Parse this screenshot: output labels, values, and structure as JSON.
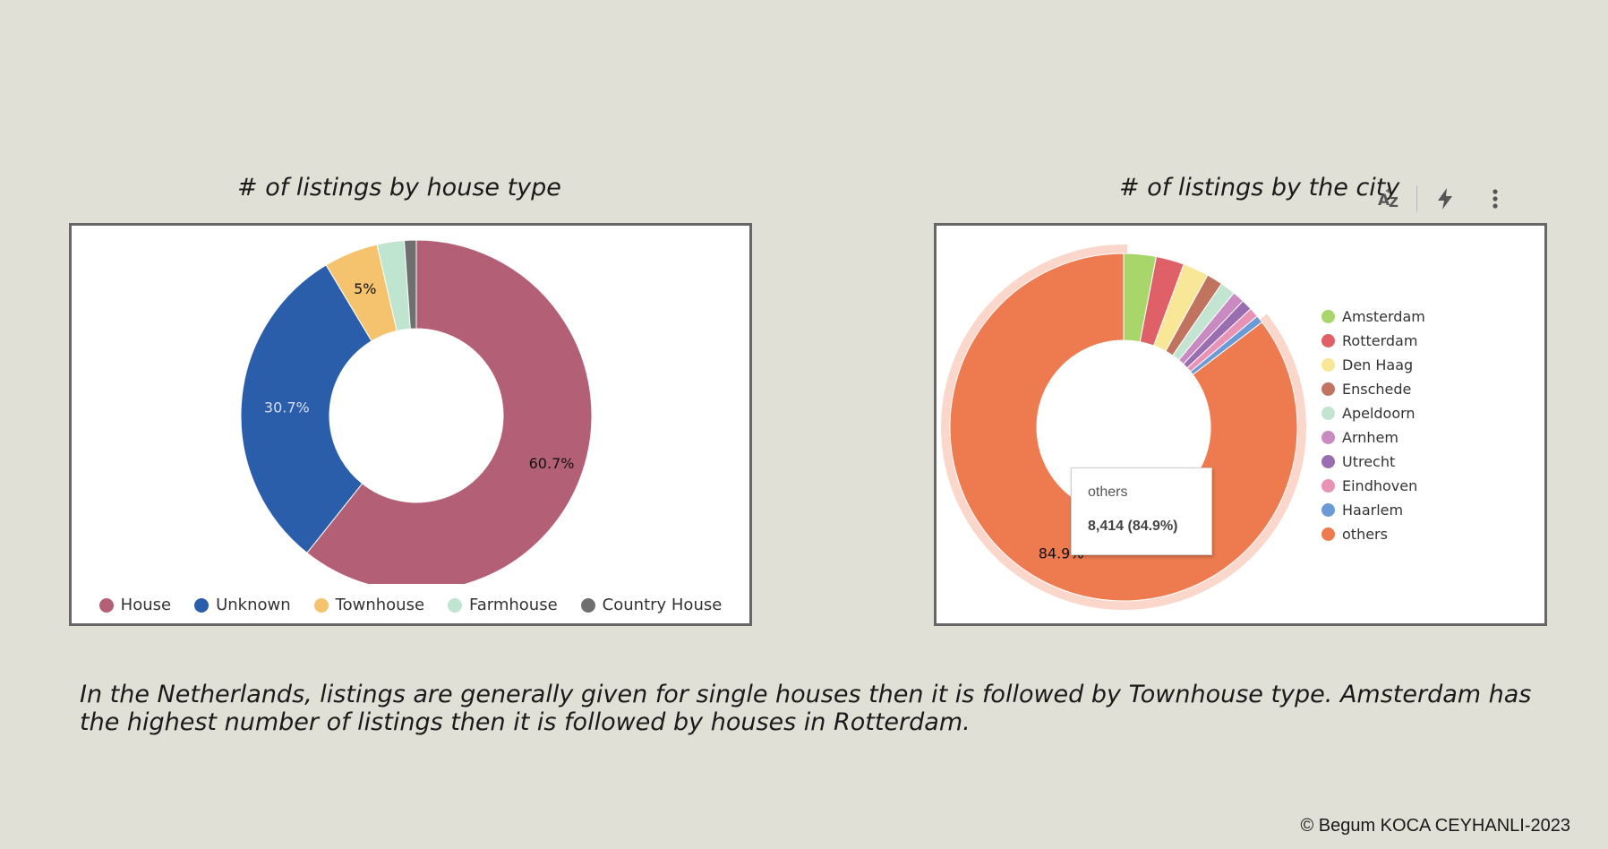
{
  "chart_data": [
    {
      "type": "pie",
      "title": "# of listings by  house type",
      "categories": [
        "House",
        "Unknown",
        "Townhouse",
        "Farmhouse",
        "Country House"
      ],
      "values": [
        60.7,
        30.7,
        5,
        2.5,
        1.1
      ],
      "value_unit": "%",
      "data_labels": [
        "60.7%",
        "30.7%",
        "5%",
        "",
        ""
      ],
      "colors": [
        "#b35f76",
        "#2a5eab",
        "#f5c36e",
        "#bfe4cf",
        "#6f6f6f"
      ],
      "legend_position": "bottom"
    },
    {
      "type": "pie",
      "title": "# of listings by the city",
      "categories": [
        "Amsterdam",
        "Rotterdam",
        "Den Haag",
        "Enschede",
        "Apeldoorn",
        "Arnhem",
        "Utrecht",
        "Eindhoven",
        "Haarlem",
        "others"
      ],
      "values": [
        3.0,
        2.6,
        2.4,
        1.5,
        1.4,
        1.1,
        1.0,
        0.9,
        0.7,
        84.9
      ],
      "value_unit": "%",
      "data_labels": [
        "",
        "",
        "",
        "",
        "",
        "",
        "",
        "",
        "",
        "84.9%"
      ],
      "colors": [
        "#a8d66a",
        "#e06068",
        "#f8e796",
        "#c0735f",
        "#c4e4d2",
        "#c88ac0",
        "#9a6cb0",
        "#e893b6",
        "#6a9bd6",
        "#ee7b50"
      ],
      "legend_position": "right",
      "highlighted": "others",
      "tooltip": {
        "label": "others",
        "value": "8,414 (84.9%)"
      }
    }
  ],
  "toolbar": {
    "sort_icon": "sort-az-icon",
    "lightning_icon": "lightning-icon",
    "more_icon": "more-vertical-icon",
    "sort_label": "AZ"
  },
  "caption": "In the Netherlands, listings are generally given for single houses then it is followed by Townhouse type. Amsterdam has the highest number of listings then it is followed by houses in Rotterdam.",
  "copyright": "© Begum KOCA CEYHANLI-2023"
}
